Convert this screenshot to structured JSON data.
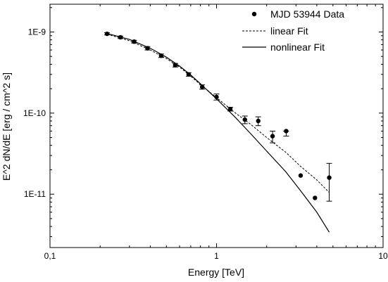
{
  "chart_data": {
    "type": "scatter",
    "xlabel": "Energy [TeV]",
    "ylabel": "E^2 dN/dE [erg / cm^2 s]",
    "xscale": "log",
    "yscale": "log",
    "xlim": [
      0.1,
      10
    ],
    "ylim": [
      2.2e-12,
      2.2e-09
    ],
    "x_ticks": [
      {
        "value": 0.1,
        "label": "0,1"
      },
      {
        "value": 1,
        "label": "1"
      },
      {
        "value": 10,
        "label": "10"
      }
    ],
    "y_ticks": [
      {
        "value": 1e-11,
        "label": "1E-11"
      },
      {
        "value": 1e-10,
        "label": "1E-10"
      },
      {
        "value": 1e-09,
        "label": "1E-9"
      }
    ],
    "legend_position": "top-right",
    "series": [
      {
        "name": "MJD 53944 Data",
        "kind": "points",
        "color": "#000000",
        "points": [
          {
            "x": 0.22,
            "y": 9.5e-10,
            "yerr_lo": 9.2e-10,
            "yerr_hi": 9.8e-10
          },
          {
            "x": 0.265,
            "y": 8.6e-10,
            "yerr_lo": 8.3e-10,
            "yerr_hi": 8.9e-10
          },
          {
            "x": 0.32,
            "y": 7.6e-10,
            "yerr_lo": 7.3e-10,
            "yerr_hi": 7.9e-10
          },
          {
            "x": 0.385,
            "y": 6.3e-10,
            "yerr_lo": 6e-10,
            "yerr_hi": 6.6e-10
          },
          {
            "x": 0.465,
            "y": 5.1e-10,
            "yerr_lo": 4.85e-10,
            "yerr_hi": 5.35e-10
          },
          {
            "x": 0.565,
            "y": 3.9e-10,
            "yerr_lo": 3.7e-10,
            "yerr_hi": 4.1e-10
          },
          {
            "x": 0.68,
            "y": 3e-10,
            "yerr_lo": 2.85e-10,
            "yerr_hi": 3.15e-10
          },
          {
            "x": 0.82,
            "y": 2.1e-10,
            "yerr_lo": 1.97e-10,
            "yerr_hi": 2.23e-10
          },
          {
            "x": 1.0,
            "y": 1.58e-10,
            "yerr_lo": 1.45e-10,
            "yerr_hi": 1.72e-10
          },
          {
            "x": 1.21,
            "y": 1.12e-10,
            "yerr_lo": 1.06e-10,
            "yerr_hi": 1.18e-10
          },
          {
            "x": 1.48,
            "y": 8.3e-11,
            "yerr_lo": 7.4e-11,
            "yerr_hi": 9.2e-11
          },
          {
            "x": 1.78,
            "y": 8e-11,
            "yerr_lo": 7e-11,
            "yerr_hi": 9e-11
          },
          {
            "x": 2.17,
            "y": 5.2e-11,
            "yerr_lo": 4.3e-11,
            "yerr_hi": 6e-11
          },
          {
            "x": 2.62,
            "y": 6e-11,
            "yerr_lo": 5.2e-11,
            "yerr_hi": 6e-11
          },
          {
            "x": 3.2,
            "y": 1.7e-11,
            "yerr_lo": 1.7e-11,
            "yerr_hi": 1.7e-11
          },
          {
            "x": 3.9,
            "y": 9e-12,
            "yerr_lo": 9e-12,
            "yerr_hi": 9e-12
          },
          {
            "x": 4.75,
            "y": 1.6e-11,
            "yerr_lo": 8.2e-12,
            "yerr_hi": 2.4e-11
          }
        ]
      },
      {
        "name": "linear Fit",
        "kind": "line",
        "style": "dashed",
        "color": "#000000",
        "points": [
          {
            "x": 0.22,
            "y": 9.4e-10
          },
          {
            "x": 0.3,
            "y": 7.8e-10
          },
          {
            "x": 0.4,
            "y": 6e-10
          },
          {
            "x": 0.5,
            "y": 4.7e-10
          },
          {
            "x": 0.6,
            "y": 3.7e-10
          },
          {
            "x": 0.7,
            "y": 2.85e-10
          },
          {
            "x": 0.8,
            "y": 2.25e-10
          },
          {
            "x": 1.0,
            "y": 1.55e-10
          },
          {
            "x": 1.3,
            "y": 1e-10
          },
          {
            "x": 1.6,
            "y": 7.3e-11
          },
          {
            "x": 2.0,
            "y": 5e-11
          },
          {
            "x": 2.6,
            "y": 3.3e-11
          },
          {
            "x": 3.2,
            "y": 2.2e-11
          },
          {
            "x": 4.0,
            "y": 1.5e-11
          },
          {
            "x": 4.75,
            "y": 1.05e-11
          }
        ]
      },
      {
        "name": "nonlinear Fit",
        "kind": "line",
        "style": "solid",
        "color": "#000000",
        "points": [
          {
            "x": 0.22,
            "y": 9.6e-10
          },
          {
            "x": 0.3,
            "y": 8.1e-10
          },
          {
            "x": 0.4,
            "y": 6.3e-10
          },
          {
            "x": 0.5,
            "y": 4.9e-10
          },
          {
            "x": 0.6,
            "y": 3.8e-10
          },
          {
            "x": 0.7,
            "y": 2.95e-10
          },
          {
            "x": 0.8,
            "y": 2.3e-10
          },
          {
            "x": 1.0,
            "y": 1.5e-10
          },
          {
            "x": 1.3,
            "y": 8.8e-11
          },
          {
            "x": 1.6,
            "y": 5.6e-11
          },
          {
            "x": 2.0,
            "y": 3.4e-11
          },
          {
            "x": 2.6,
            "y": 1.9e-11
          },
          {
            "x": 3.2,
            "y": 1.1e-11
          },
          {
            "x": 4.0,
            "y": 6e-12
          },
          {
            "x": 4.75,
            "y": 3.4e-12
          }
        ]
      }
    ]
  }
}
